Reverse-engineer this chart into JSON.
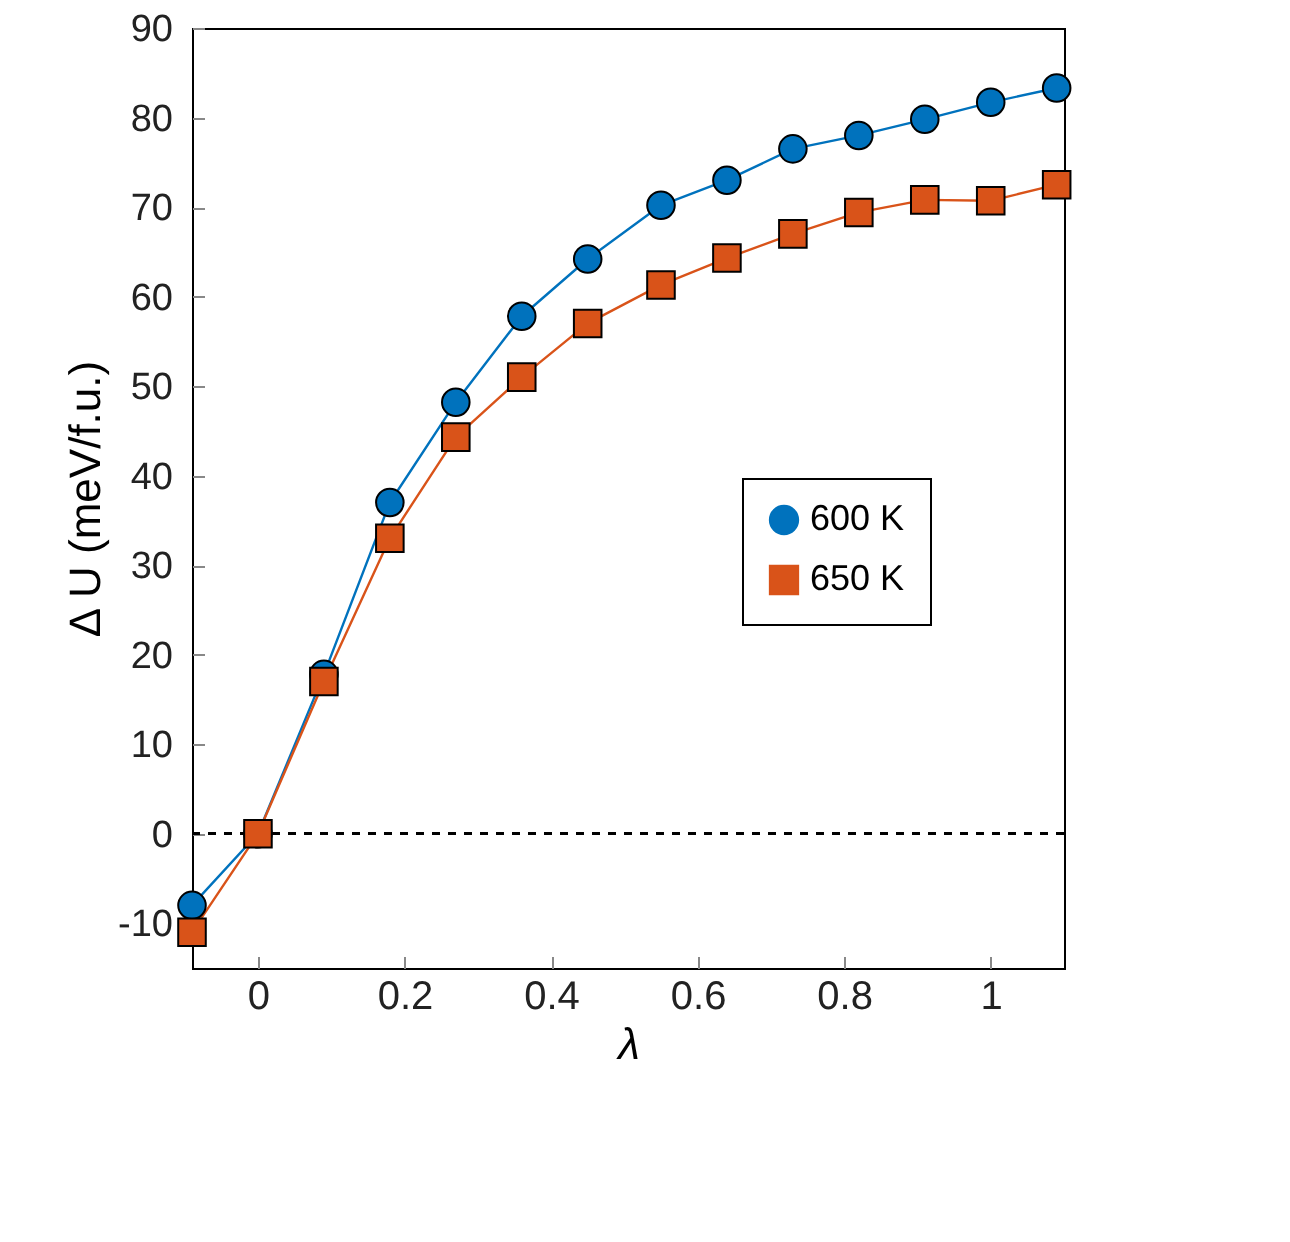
{
  "chart_data": {
    "type": "line",
    "xlabel": "λ",
    "ylabel": "Δ U (meV/f.u.)",
    "x": [
      -0.09,
      0,
      0.09,
      0.18,
      0.27,
      0.36,
      0.45,
      0.55,
      0.64,
      0.73,
      0.82,
      0.91,
      1,
      1.09
    ],
    "series": [
      {
        "name": "600 K",
        "color": "#0072bd",
        "marker": "circle",
        "values": [
          -8,
          0,
          17.8,
          37,
          48.2,
          57.8,
          64.2,
          70.2,
          73,
          76.5,
          78,
          79.8,
          81.7,
          83.3
        ]
      },
      {
        "name": "650 K",
        "color": "#d95319",
        "marker": "square",
        "values": [
          -11,
          0,
          17,
          33,
          44.3,
          51,
          57,
          61.3,
          64.3,
          67,
          69.4,
          70.8,
          70.7,
          72.5
        ]
      }
    ],
    "xlim": [
      -0.09,
      1.1
    ],
    "xticks": [
      0,
      0.2,
      0.4,
      0.6,
      0.8,
      1
    ],
    "ylim": [
      -15,
      90
    ],
    "yticks": [
      -10,
      0,
      10,
      20,
      30,
      40,
      50,
      60,
      70,
      80,
      90
    ],
    "ref_lines": [
      {
        "axis": "y",
        "value": 0,
        "line_style": "dashed",
        "color": "#000000"
      }
    ],
    "grid": false,
    "legend": "right",
    "line_style": "solid"
  }
}
